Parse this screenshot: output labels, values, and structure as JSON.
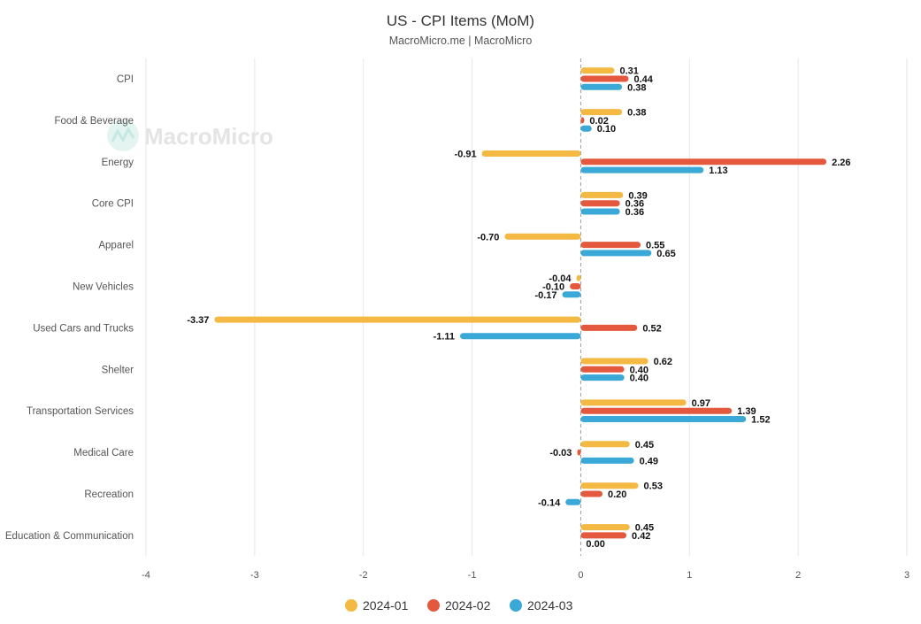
{
  "header": {
    "title": "US - CPI Items (MoM)",
    "subtitle": "MacroMicro.me | MacroMicro"
  },
  "watermark": {
    "text": "MacroMicro"
  },
  "colors": {
    "series": [
      "#f4b942",
      "#e4583e",
      "#3aa9d8"
    ],
    "grid": "#e6e6e6",
    "zero_line": "#999999"
  },
  "chart_data": {
    "type": "bar",
    "orientation": "horizontal",
    "title": "US - CPI Items (MoM)",
    "subtitle": "MacroMicro.me | MacroMicro",
    "categories": [
      "CPI",
      "Food & Beverage",
      "Energy",
      "Core CPI",
      "Apparel",
      "New Vehicles",
      "Used Cars and Trucks",
      "Shelter",
      "Transportation Services",
      "Medical Care",
      "Recreation",
      "Education & Communication"
    ],
    "series": [
      {
        "name": "2024-01",
        "values": [
          0.31,
          0.38,
          -0.91,
          0.39,
          -0.7,
          -0.04,
          -3.37,
          0.62,
          0.97,
          0.45,
          0.53,
          0.45
        ]
      },
      {
        "name": "2024-02",
        "values": [
          0.44,
          0.02,
          2.26,
          0.36,
          0.55,
          -0.1,
          0.52,
          0.4,
          1.39,
          -0.03,
          0.2,
          0.42
        ]
      },
      {
        "name": "2024-03",
        "values": [
          0.38,
          0.1,
          1.13,
          0.36,
          0.65,
          -0.17,
          -1.11,
          0.4,
          1.52,
          0.49,
          -0.14,
          0.0
        ]
      }
    ],
    "data_labels": [
      [
        "0.31",
        "0.38",
        "-0.91",
        "0.39",
        "-0.70",
        "-0.04",
        "-3.37",
        "0.62",
        "0.97",
        "0.45",
        "0.53",
        "0.45"
      ],
      [
        "0.44",
        "0.02",
        "2.26",
        "0.36",
        "0.55",
        "-0.10",
        "0.52",
        "0.40",
        "1.39",
        "-0.03",
        "0.20",
        "0.42"
      ],
      [
        "0.38",
        "0.10",
        "1.13",
        "0.36",
        "0.65",
        "-0.17",
        "-1.11",
        "0.40",
        "1.52",
        "0.49",
        "-0.14",
        "0.00"
      ]
    ],
    "xlim": [
      -4,
      3
    ],
    "x_ticks": [
      "-4",
      "-3",
      "-2",
      "-1",
      "0",
      "1",
      "2",
      "3"
    ],
    "grid": true,
    "legend_position": "bottom-center"
  }
}
